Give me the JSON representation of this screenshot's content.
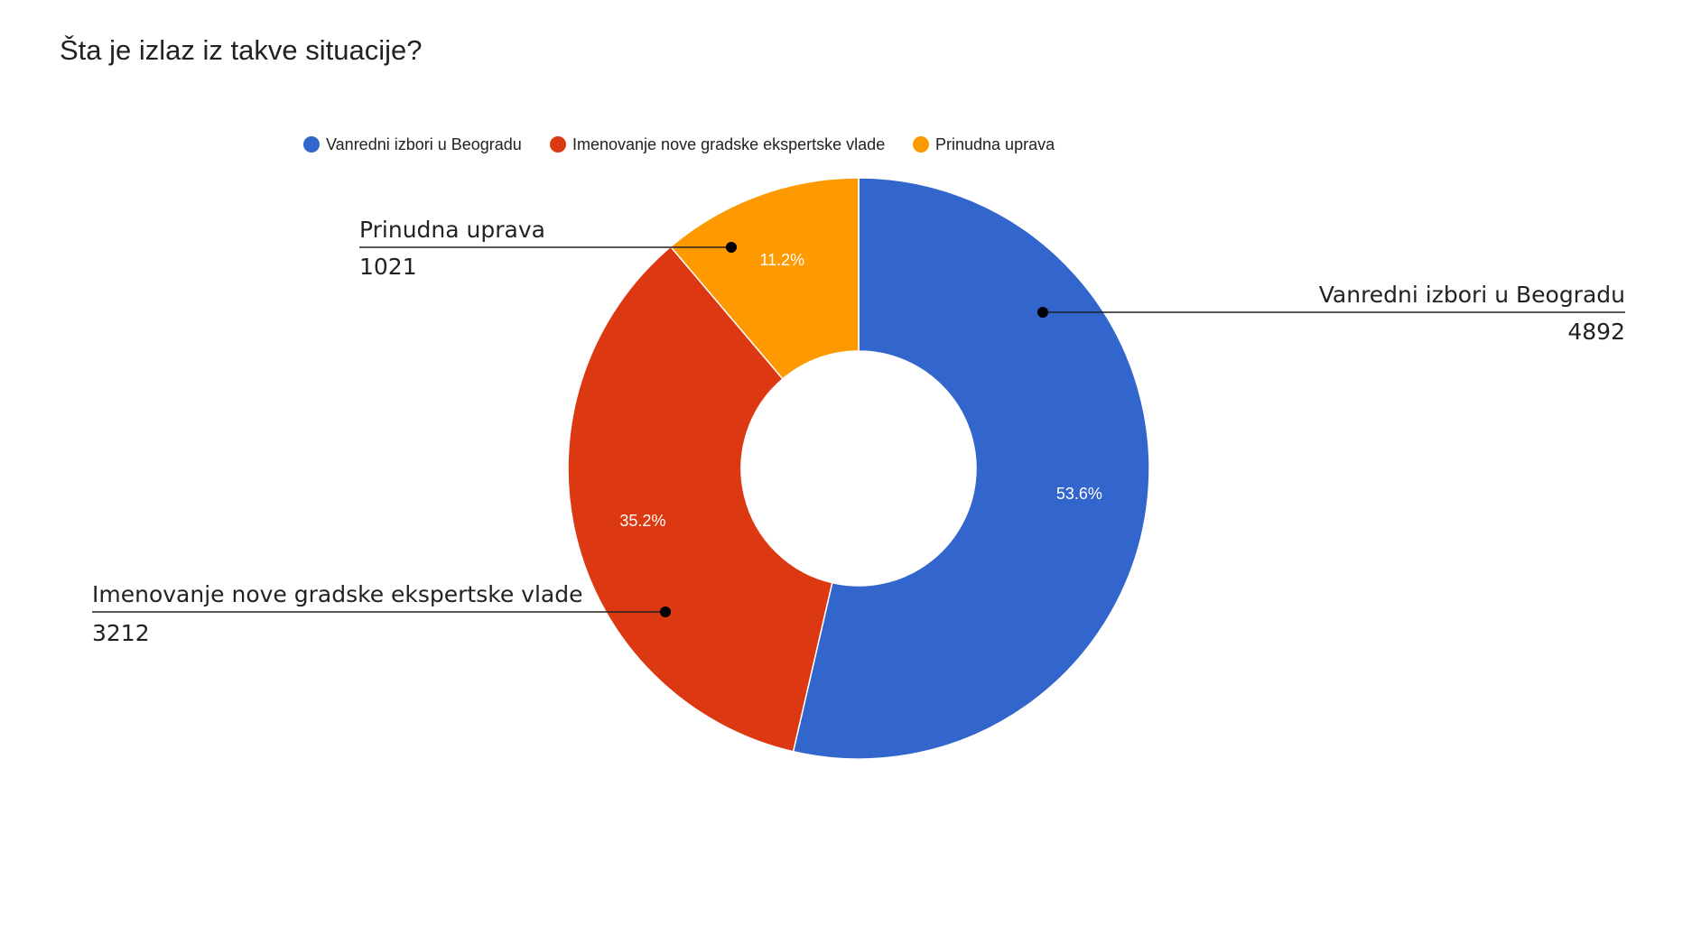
{
  "chart_data": {
    "type": "pie",
    "style": "donut",
    "title": "Šta je izlaz iz takve situacije?",
    "legend_position": "top",
    "slices": [
      {
        "label": "Vanredni izbori u Beogradu",
        "value": 4892,
        "percent_label": "53.6%",
        "color": "#3366cc"
      },
      {
        "label": "Imenovanje nove gradske ekspertske vlade",
        "value": 3212,
        "percent_label": "35.2%",
        "color": "#dc3912"
      },
      {
        "label": "Prinudna uprava",
        "value": 1021,
        "percent_label": "11.2%",
        "color": "#ff9900"
      }
    ]
  }
}
